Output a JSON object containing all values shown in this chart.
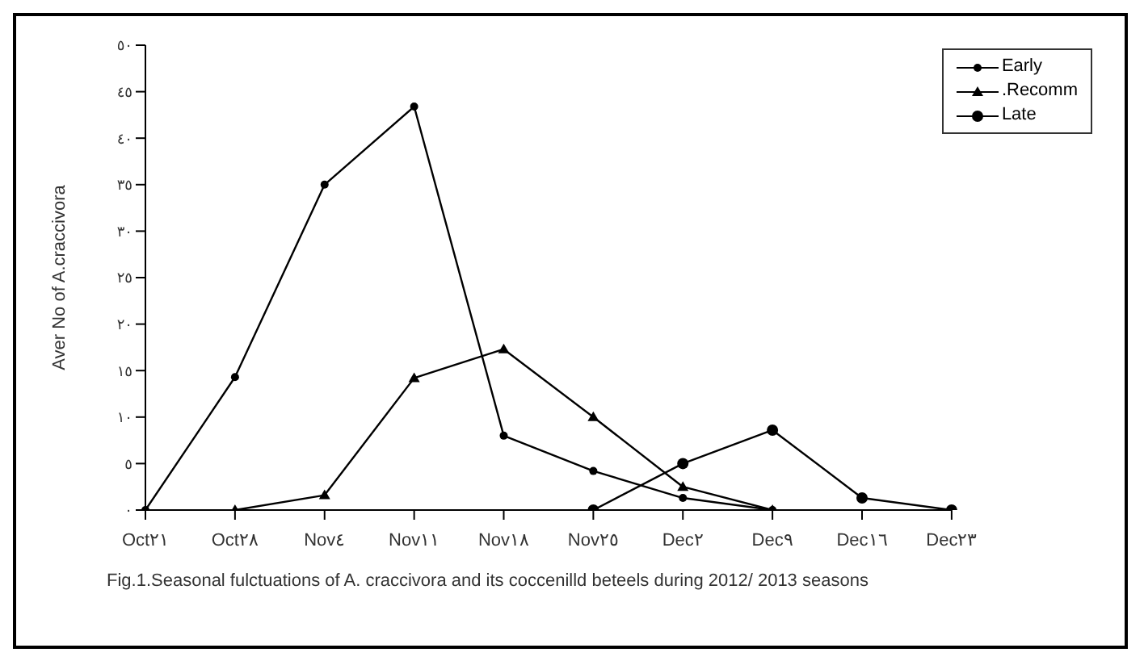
{
  "chart_data": {
    "type": "line",
    "ylabel": "Aver No of A.craccivora",
    "categories": [
      "Oct٢١",
      "Oct٢٨",
      "Nov٤",
      "Nov١١",
      "Nov١٨",
      "Nov٢٥",
      "Dec٢",
      "Dec٩",
      "Dec١٦",
      "Dec٢٣"
    ],
    "series": [
      {
        "name": "Early",
        "color": "#000000",
        "marker": "circle",
        "values": [
          0,
          14.3,
          35,
          43.4,
          8,
          4.2,
          1.3,
          0,
          null,
          null
        ]
      },
      {
        "name": ".Recomm",
        "color": "#000000",
        "marker": "triangle",
        "values": [
          null,
          0,
          1.6,
          14.2,
          17.3,
          10,
          2.5,
          0,
          null,
          null
        ]
      },
      {
        "name": "Late",
        "color": "#000000",
        "marker": "circle",
        "values": [
          null,
          null,
          null,
          null,
          null,
          0,
          5,
          8.6,
          1.3,
          0
        ]
      }
    ],
    "ylim": [
      0,
      50
    ],
    "yticks": [
      {
        "value": 0,
        "label": "٠"
      },
      {
        "value": 5,
        "label": "٥"
      },
      {
        "value": 10,
        "label": "١٠"
      },
      {
        "value": 15,
        "label": "١٥"
      },
      {
        "value": 20,
        "label": "٢٠"
      },
      {
        "value": 25,
        "label": "٢٥"
      },
      {
        "value": 30,
        "label": "٣٠"
      },
      {
        "value": 35,
        "label": "٣٥"
      },
      {
        "value": 40,
        "label": "٤٠"
      },
      {
        "value": 45,
        "label": "٤٥"
      },
      {
        "value": 50,
        "label": "٥٠"
      }
    ],
    "grid": false,
    "legend": "top right",
    "line_style": "solid",
    "annotations": [
      "Fig.1.Seasonal  fulctuations of A. craccivora and its coccenilld beteels during 2012/ 2013 seasons"
    ]
  }
}
